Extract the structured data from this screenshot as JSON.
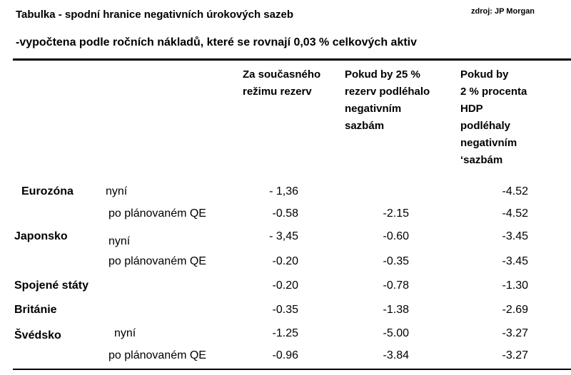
{
  "header": {
    "title": "Tabulka - spodní hranice negativních úrokových sazeb",
    "subtitle": "-vypočtena podle ročních nákladů, které se rovnají 0,03 % celkových aktiv",
    "source": "zdroj: JP Morgan"
  },
  "table": {
    "columns": [
      [
        "Za současného",
        "režimu rezerv"
      ],
      [
        "Pokud by 25 %",
        "rezerv podléhalo",
        "negativním",
        "sazbám"
      ],
      [
        "Pokud by",
        "2 % procenta",
        "HDP",
        "podléhaly",
        "negativním",
        "‘sazbám"
      ]
    ],
    "rows": [
      {
        "country": "Eurozóna",
        "sub": "nyní",
        "values": [
          "- 1,36",
          null,
          "-4.52"
        ]
      },
      {
        "country": null,
        "sub": "po plánovaném QE",
        "values": [
          "-0.58",
          "-2.15",
          "-4.52"
        ]
      },
      {
        "country": "Japonsko",
        "sub": "nyní",
        "values": [
          "- 3,45",
          "-0.60",
          "-3.45"
        ]
      },
      {
        "country": null,
        "sub": "po plánovaném QE",
        "values": [
          "-0.20",
          "-0.35",
          "-3.45"
        ]
      },
      {
        "country": "Spojené státy",
        "sub": null,
        "values": [
          "-0.20",
          "-0.78",
          "-1.30"
        ]
      },
      {
        "country": "Británie",
        "sub": null,
        "values": [
          "-0.35",
          "-1.38",
          "-2.69"
        ]
      },
      {
        "country": "Švédsko",
        "sub": "nyní",
        "values": [
          "-1.25",
          "-5.00",
          "-3.27"
        ]
      },
      {
        "country": null,
        "sub": "po plánovaném QE",
        "values": [
          "-0.96",
          "-3.84",
          "-3.27"
        ]
      }
    ]
  }
}
